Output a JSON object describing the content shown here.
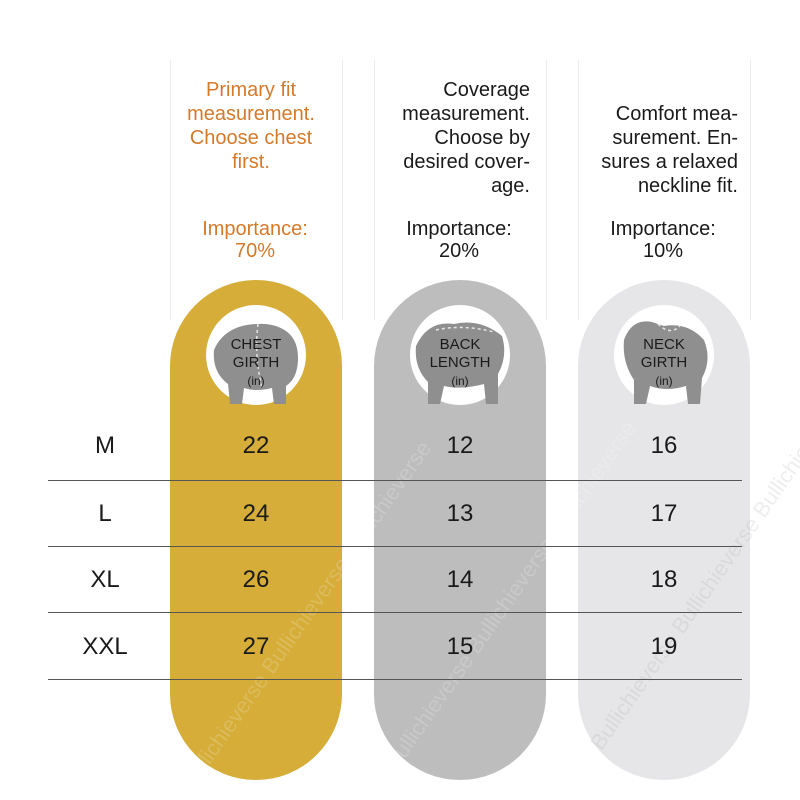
{
  "colors": {
    "chest_pill": "#d5ad38",
    "back_pill": "#bdbdbd",
    "neck_pill": "#e6e6e8",
    "accent_text": "#d47a2b",
    "badge_bg": "#ffffff",
    "dog": "#8f8f8f"
  },
  "columns": [
    {
      "key": "chest",
      "description": [
        "Primary fit",
        "measurement.",
        "Choose chest",
        "first."
      ],
      "importance_label": "Importance:",
      "importance_value": "70%",
      "badge_label": [
        "CHEST",
        "GIRTH"
      ],
      "badge_unit": "(in)",
      "values": [
        "22",
        "24",
        "26",
        "27"
      ]
    },
    {
      "key": "back",
      "description": [
        "Coverage",
        "measurement.",
        "Choose by",
        "desired cover-",
        "age."
      ],
      "importance_label": "Importance:",
      "importance_value": "20%",
      "badge_label": [
        "BACK",
        "LENGTH"
      ],
      "badge_unit": "(in)",
      "values": [
        "12",
        "13",
        "14",
        "15"
      ]
    },
    {
      "key": "neck",
      "description": [
        "Comfort mea-",
        "surement. En-",
        "sures a relaxed",
        "neckline fit."
      ],
      "importance_label": "Importance:",
      "importance_value": "10%",
      "badge_label": [
        "NECK",
        "GIRTH"
      ],
      "badge_unit": "(in)",
      "values": [
        "16",
        "17",
        "18",
        "19"
      ]
    }
  ],
  "sizes": [
    "M",
    "L",
    "XL",
    "XXL"
  ],
  "watermark": "Bullichieverse"
}
